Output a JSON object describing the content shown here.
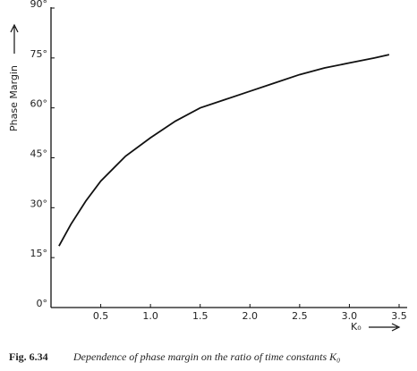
{
  "chart_data": {
    "type": "line",
    "ylabel": "Phase Margin",
    "xlabel": "K₀",
    "caption_label": "Fig. 6.34",
    "caption": "Dependence of phase margin on the ratio of time constants K₀",
    "x": [
      0.08,
      0.2,
      0.35,
      0.5,
      0.75,
      1.0,
      1.25,
      1.5,
      1.75,
      2.0,
      2.25,
      2.5,
      2.75,
      3.0,
      3.25,
      3.4
    ],
    "series": [
      {
        "color": "#111111",
        "values": [
          18.5,
          25,
          32,
          38,
          45.5,
          51,
          56,
          60,
          62.5,
          65,
          67.5,
          70,
          72,
          73.5,
          75,
          76
        ]
      }
    ],
    "xlim": [
      0,
      3.5
    ],
    "ylim": [
      0,
      90
    ],
    "xticks": [
      0.5,
      {
        "value": 1,
        "label": "1.0"
      },
      1.5,
      {
        "value": 2,
        "label": "2.0"
      },
      2.5,
      {
        "value": 3,
        "label": "3.0"
      },
      3.5
    ],
    "yticks": [
      {
        "value": 0,
        "label": "0°"
      },
      {
        "value": 15,
        "label": "15°"
      },
      {
        "value": 30,
        "label": "30°"
      },
      {
        "value": 45,
        "label": "45°"
      },
      {
        "value": 60,
        "label": "60°"
      },
      {
        "value": 75,
        "label": "75°"
      },
      {
        "value": 90,
        "label": "90°"
      }
    ],
    "grid": false
  }
}
